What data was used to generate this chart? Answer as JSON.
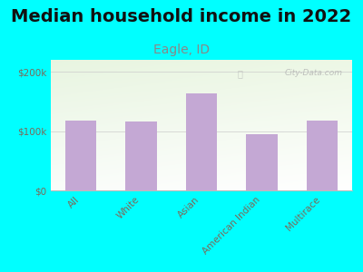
{
  "title": "Median household income in 2022",
  "subtitle": "Eagle, ID",
  "categories": [
    "All",
    "White",
    "Asian",
    "American Indian",
    "Multirace"
  ],
  "values": [
    118000,
    116000,
    163000,
    95000,
    117000
  ],
  "bar_color": "#c4a8d4",
  "background_outer": "#00FFFF",
  "title_fontsize": 14,
  "subtitle_fontsize": 10,
  "tick_label_fontsize": 7.5,
  "axis_label_color": "#7a6a5a",
  "title_color": "#111111",
  "subtitle_color": "#888888",
  "watermark": "City-Data.com",
  "ylim": [
    0,
    220000
  ],
  "yticks": [
    0,
    100000,
    200000
  ],
  "ytick_labels": [
    "$0",
    "$100k",
    "$200k"
  ]
}
